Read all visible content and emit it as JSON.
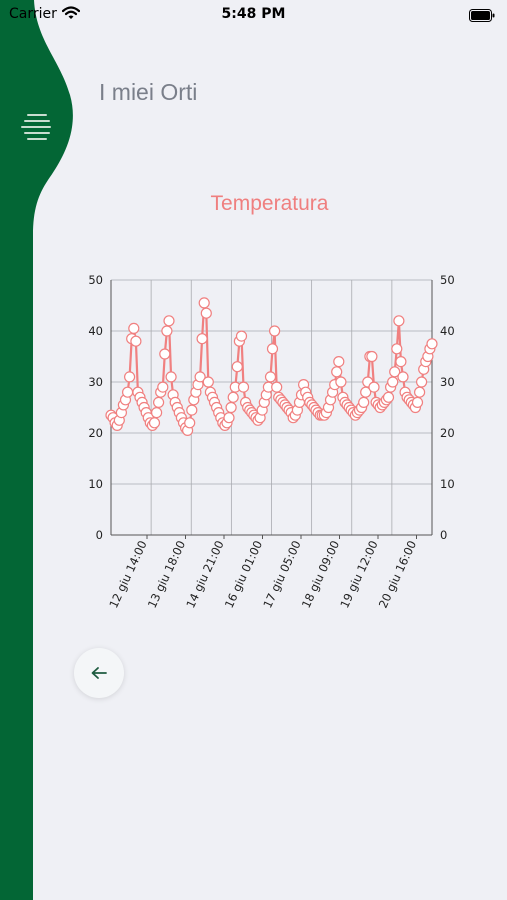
{
  "status_bar": {
    "carrier": "Carrier",
    "time": "5:48 PM"
  },
  "header": {
    "title": "I miei Orti"
  },
  "icons": {
    "menu": "menu-lines-icon",
    "back": "arrow-left-icon",
    "wifi": "wifi-icon",
    "battery": "battery-icon"
  },
  "colors": {
    "sidebar": "#036635",
    "series": "#f08080",
    "title": "#ef7f7f",
    "background": "#eff0f5"
  },
  "chart_title": "Temperatura",
  "chart_data": {
    "type": "line",
    "title": "Temperatura",
    "xlabel": "",
    "ylabel": "",
    "ylim": [
      0,
      50
    ],
    "y_ticks": [
      "0",
      "10",
      "20",
      "30",
      "40",
      "50"
    ],
    "right_axis": true,
    "grid": true,
    "x_tick_labels": [
      "12 giu 14:00",
      "13 giu 18:00",
      "14 giu 21:00",
      "16 giu 01:00",
      "17 giu 05:00",
      "18 giu 09:00",
      "19 giu 12:00",
      "20 giu 16:00"
    ],
    "series": [
      {
        "values": [
          23.5,
          23,
          22,
          21.5,
          22.5,
          24,
          25.5,
          26.5,
          28,
          31,
          38.5,
          40.5,
          38,
          28,
          27,
          26,
          25,
          24,
          23,
          22,
          21.5,
          22,
          24,
          26,
          28,
          29,
          35.5,
          40,
          42,
          31,
          27.5,
          26,
          25,
          24,
          23,
          22,
          21,
          20.5,
          22,
          24.5,
          26.5,
          28,
          29.5,
          31,
          38.5,
          45.5,
          43.5,
          30,
          28,
          27,
          26,
          25,
          24,
          23,
          22,
          21.5,
          22,
          23,
          25,
          27,
          29,
          33,
          38,
          39,
          29,
          26,
          25,
          24.5,
          24,
          23.5,
          23,
          22.5,
          23,
          24.5,
          26,
          27.5,
          29,
          31,
          36.5,
          40,
          29,
          27,
          26.5,
          26,
          25.5,
          25,
          24.5,
          24,
          23,
          23.5,
          24.5,
          26,
          27.5,
          29.5,
          28,
          27,
          26,
          25.5,
          25,
          24.5,
          24,
          23.5,
          23.5,
          23.5,
          24,
          25,
          26.5,
          28,
          29.5,
          32,
          34,
          30,
          27,
          26,
          25.5,
          25,
          24.5,
          24,
          23.5,
          24,
          24.5,
          25,
          26,
          28,
          30,
          35,
          35,
          29,
          26,
          25.5,
          25,
          25.5,
          26,
          26.5,
          27,
          29,
          30,
          32,
          36.5,
          42,
          34,
          31,
          28,
          27,
          26.5,
          26,
          25.5,
          25,
          26,
          28,
          30,
          32.5,
          34,
          35,
          36.5,
          37.5
        ]
      }
    ]
  }
}
